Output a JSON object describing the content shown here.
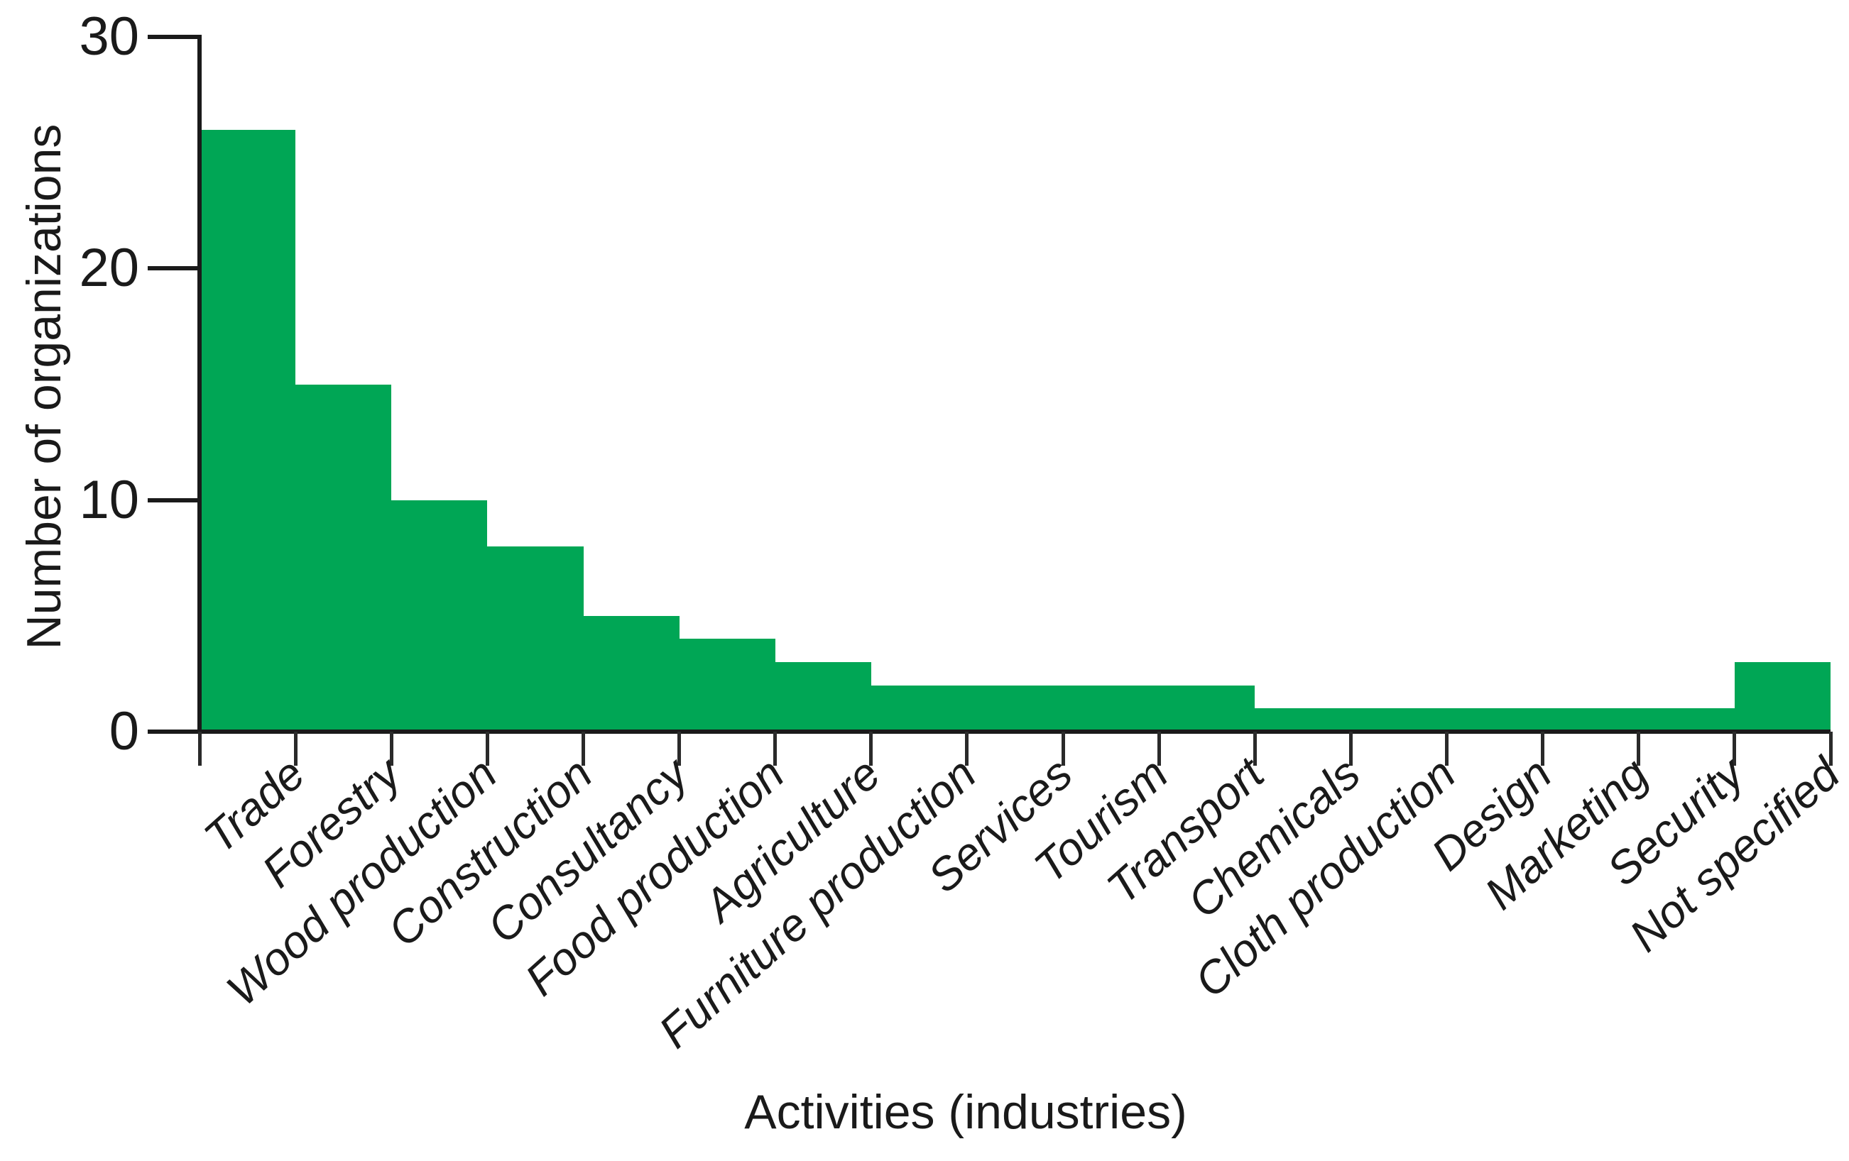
{
  "chart_data": {
    "type": "bar",
    "title": "",
    "xlabel": "Activities (industries)",
    "ylabel": "Number of organizations",
    "categories": [
      "Trade",
      "Forestry",
      "Wood production",
      "Construction",
      "Consultancy",
      "Food production",
      "Agriculture",
      "Furniture production",
      "Services",
      "Tourism",
      "Transport",
      "Chemicals",
      "Cloth production",
      "Design",
      "Marketing",
      "Security",
      "Not specified"
    ],
    "values": [
      26,
      15,
      10,
      8,
      5,
      4,
      3,
      2,
      2,
      2,
      2,
      1,
      1,
      1,
      1,
      1,
      3
    ],
    "yticks": [
      0,
      10,
      20,
      30
    ],
    "ylim": [
      0,
      30
    ],
    "grid": "off",
    "legend": "none",
    "bar_color": "#00A655",
    "axis_color": "#1a1a1a"
  }
}
